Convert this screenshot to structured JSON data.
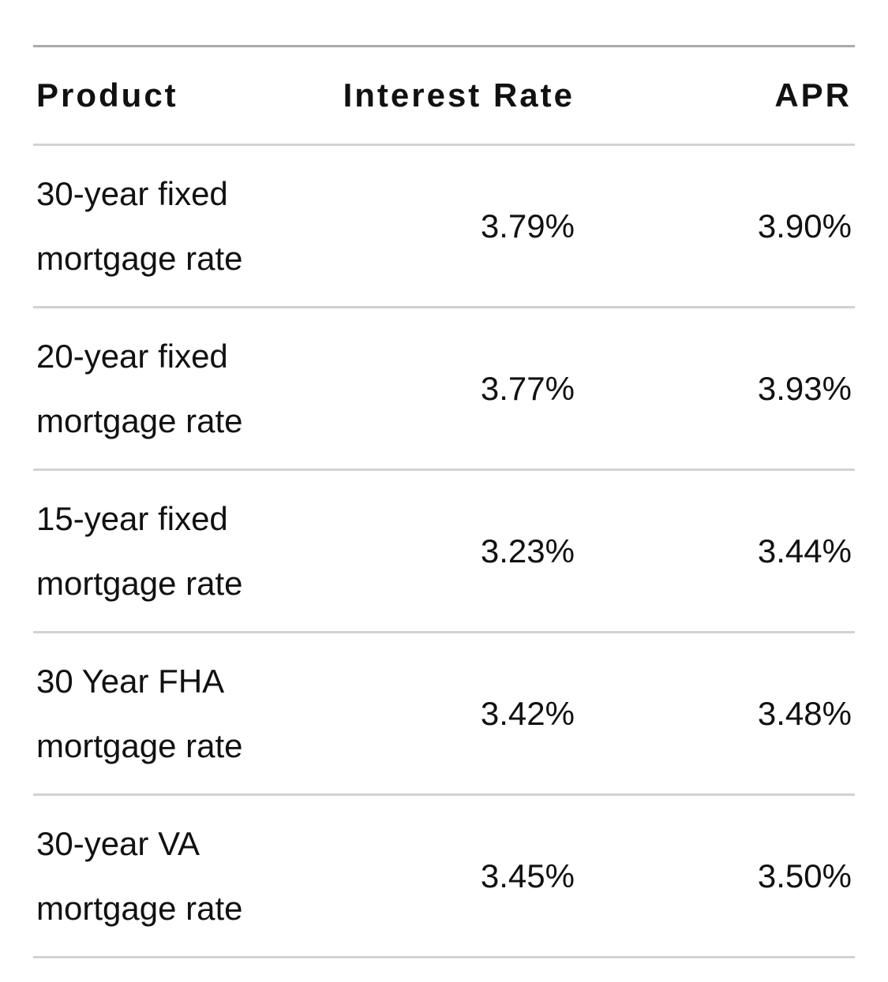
{
  "table": {
    "header": [
      "Product",
      "Interest Rate",
      "APR"
    ],
    "rows": [
      [
        "30-year fixed mortgage rate",
        "3.79%",
        "3.90%"
      ],
      [
        "20-year fixed mortgage rate",
        "3.77%",
        "3.93%"
      ],
      [
        "15-year fixed mortgage rate",
        "3.23%",
        "3.44%"
      ],
      [
        "30 Year FHA mortgage rate",
        "3.42%",
        "3.48%"
      ],
      [
        "30-year VA mortgage rate",
        "3.45%",
        "3.50%"
      ]
    ]
  }
}
